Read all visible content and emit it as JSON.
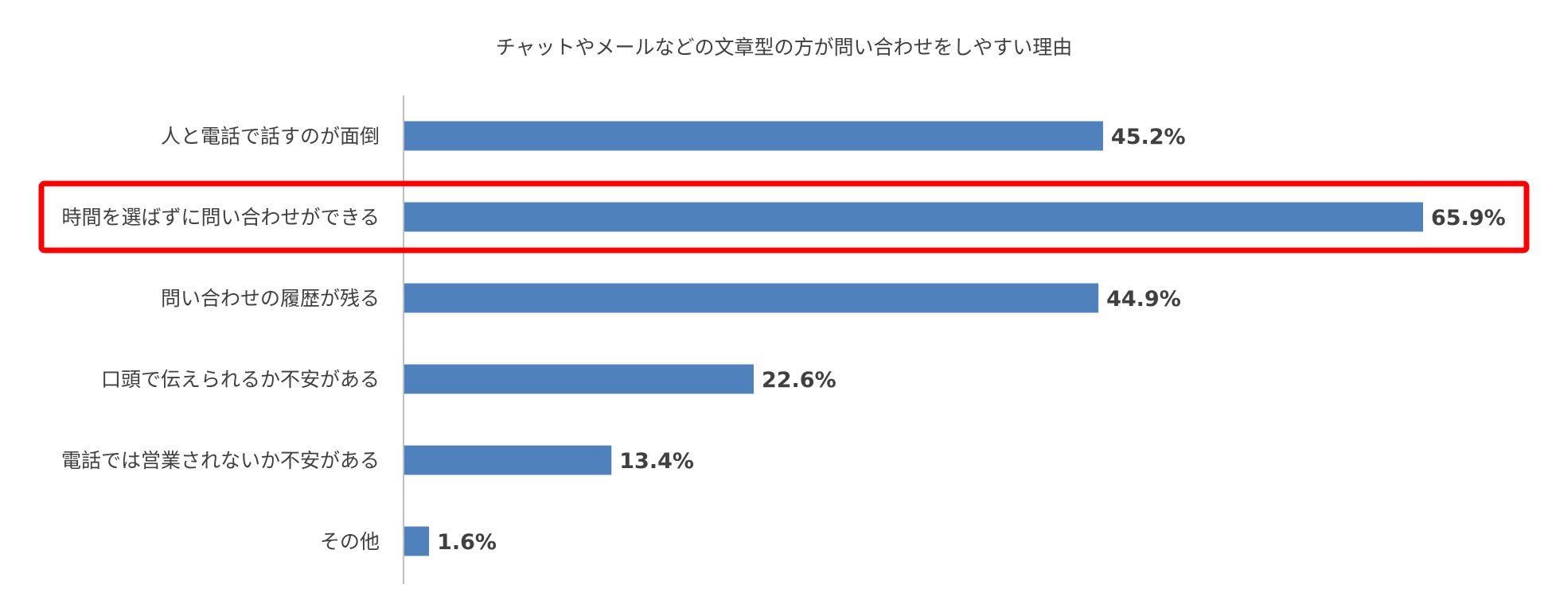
{
  "chart_data": {
    "type": "bar",
    "orientation": "horizontal",
    "title": "チャットやメールなどの文章型の方が問い合わせをしやすい理由",
    "categories": [
      "人と電話で話すのが面倒",
      "時間を選ばずに問い合わせができる",
      "問い合わせの履歴が残る",
      "口頭で伝えられるか不安がある",
      "電話では営業されないか不安がある",
      "その他"
    ],
    "values": [
      45.2,
      65.9,
      44.9,
      22.6,
      13.4,
      1.6
    ],
    "value_labels": [
      "45.2%",
      "65.9%",
      "44.9%",
      "22.6%",
      "13.4%",
      "1.6%"
    ],
    "unit": "%",
    "xlim": [
      0,
      65.9
    ],
    "grid": false,
    "legend": "none",
    "highlighted_category_index": 1,
    "colors": {
      "bar": "#4f81bd",
      "highlight_box": "#ff0000",
      "axis": "#bfbfbf",
      "text": "#404040"
    }
  }
}
